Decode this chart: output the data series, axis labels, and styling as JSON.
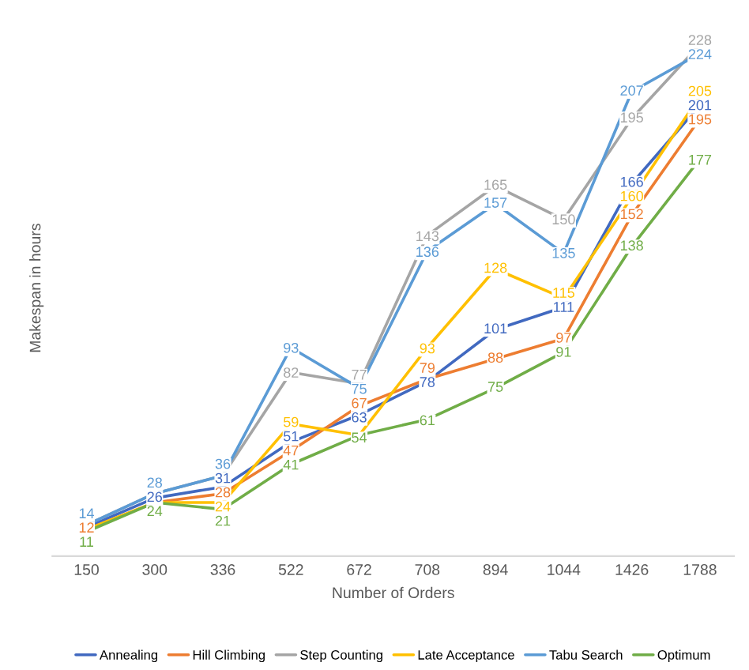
{
  "chart_data": {
    "type": "line",
    "xlabel": "Number of Orders",
    "ylabel": "Makespan in hours",
    "categories": [
      "150",
      "300",
      "336",
      "522",
      "672",
      "708",
      "894",
      "1044",
      "1426",
      "1788"
    ],
    "series": [
      {
        "name": "Annealing",
        "color": "#4169c0",
        "values": [
          13,
          26,
          31,
          51,
          63,
          78,
          101,
          111,
          166,
          201
        ],
        "value_labels": [
          null,
          "26",
          "31",
          "51",
          "63",
          "78",
          "101",
          "111",
          "166",
          "201"
        ]
      },
      {
        "name": "Hill Climbing",
        "color": "#ed7d31",
        "values": [
          12,
          24,
          28,
          47,
          67,
          79,
          88,
          97,
          152,
          195
        ],
        "value_labels": [
          "12",
          null,
          "28",
          "47",
          "67",
          "79",
          "88",
          "97",
          "152",
          "195"
        ]
      },
      {
        "name": "Step Counting",
        "color": "#a5a5a5",
        "values": [
          14,
          28,
          36,
          82,
          77,
          143,
          165,
          150,
          195,
          228
        ],
        "value_labels": [
          null,
          null,
          null,
          "82",
          "77",
          "143",
          "165",
          "150",
          "195",
          "228"
        ]
      },
      {
        "name": "Late Acceptance",
        "color": "#ffc000",
        "values": [
          12,
          24,
          24,
          59,
          54,
          93,
          128,
          115,
          160,
          205
        ],
        "value_labels": [
          null,
          null,
          "24",
          "59",
          null,
          "93",
          "128",
          "115",
          "160",
          "205"
        ]
      },
      {
        "name": "Tabu Search",
        "color": "#5b9bd5",
        "values": [
          14,
          28,
          36,
          93,
          75,
          136,
          157,
          135,
          207,
          224
        ],
        "value_labels": [
          "14",
          "28",
          "36",
          "93",
          "75",
          "136",
          "157",
          "135",
          "207",
          "224"
        ]
      },
      {
        "name": "Optimum",
        "color": "#70ad47",
        "values": [
          11,
          24,
          21,
          41,
          54,
          61,
          75,
          91,
          138,
          177
        ],
        "value_labels": [
          "11",
          "24",
          "21",
          "41",
          "54",
          "61",
          "75",
          "91",
          "138",
          "177"
        ]
      }
    ],
    "tick_labels": "x",
    "grid": false,
    "legend": "bottom",
    "line_style": "solid"
  }
}
